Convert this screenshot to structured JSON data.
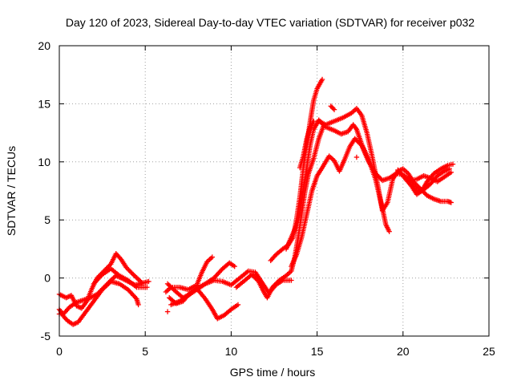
{
  "chart_data": {
    "type": "scatter",
    "title": "Day 120 of 2023, Sidereal Day-to-day VTEC variation (SDTVAR) for receiver p032",
    "xlabel": "GPS time / hours",
    "ylabel": "SDTVAR / TECUs",
    "xlim": [
      0,
      25
    ],
    "ylim": [
      -5,
      20
    ],
    "xticks": [
      0,
      5,
      10,
      15,
      20,
      25
    ],
    "yticks": [
      -5,
      0,
      5,
      10,
      15,
      20
    ],
    "grid": true,
    "marker": "+",
    "color": "#ff0000",
    "tracks": [
      {
        "name": "track-1",
        "points": [
          [
            0.0,
            -2.7
          ],
          [
            0.3,
            -3.4
          ],
          [
            0.5,
            -3.7
          ],
          [
            0.8,
            -4.0
          ],
          [
            1.1,
            -3.8
          ],
          [
            1.5,
            -3.0
          ],
          [
            2.0,
            -2.0
          ],
          [
            2.5,
            -1.0
          ],
          [
            3.0,
            -0.3
          ],
          [
            3.5,
            -0.5
          ],
          [
            4.0,
            -1.0
          ],
          [
            4.5,
            -1.8
          ],
          [
            4.6,
            -2.3
          ]
        ]
      },
      {
        "name": "track-2",
        "points": [
          [
            0.0,
            -3.1
          ],
          [
            0.3,
            -3.0
          ],
          [
            0.6,
            -2.5
          ],
          [
            1.0,
            -2.1
          ],
          [
            1.4,
            -1.9
          ],
          [
            1.8,
            -1.7
          ],
          [
            2.2,
            -1.4
          ],
          [
            2.6,
            -0.8
          ],
          [
            3.0,
            -0.2
          ],
          [
            3.3,
            0.2
          ],
          [
            3.6,
            0.0
          ],
          [
            4.0,
            -0.3
          ],
          [
            4.4,
            -0.6
          ],
          [
            5.2,
            -0.3
          ]
        ]
      },
      {
        "name": "track-3",
        "points": [
          [
            0.0,
            -1.4
          ],
          [
            0.4,
            -1.7
          ],
          [
            0.7,
            -1.5
          ],
          [
            1.0,
            -2.4
          ],
          [
            1.3,
            -2.6
          ],
          [
            1.6,
            -2.0
          ],
          [
            1.9,
            -0.9
          ],
          [
            2.2,
            0.0
          ],
          [
            2.6,
            0.6
          ],
          [
            3.0,
            1.2
          ],
          [
            3.3,
            2.1
          ],
          [
            3.6,
            1.6
          ],
          [
            3.9,
            0.9
          ],
          [
            4.3,
            0.3
          ],
          [
            4.8,
            -0.4
          ]
        ]
      },
      {
        "name": "track-4",
        "points": [
          [
            2.0,
            -0.5
          ],
          [
            2.5,
            0.3
          ],
          [
            3.0,
            0.8
          ],
          [
            3.5,
            0.2
          ],
          [
            4.0,
            -0.2
          ],
          [
            4.5,
            -0.8
          ],
          [
            5.0,
            -0.8
          ]
        ]
      },
      {
        "name": "track-5",
        "points": [
          [
            6.2,
            -1.2
          ],
          [
            6.5,
            -0.8
          ],
          [
            7.0,
            -0.8
          ],
          [
            7.5,
            -1.0
          ],
          [
            8.0,
            -0.6
          ],
          [
            8.3,
            0.5
          ],
          [
            8.6,
            1.4
          ],
          [
            8.9,
            1.8
          ]
        ]
      },
      {
        "name": "track-6",
        "points": [
          [
            6.3,
            -0.5
          ],
          [
            6.8,
            -1.2
          ],
          [
            7.2,
            -1.7
          ],
          [
            7.6,
            -1.4
          ],
          [
            8.0,
            -0.9
          ],
          [
            8.5,
            -0.5
          ],
          [
            9.0,
            0.0
          ],
          [
            9.5,
            0.8
          ],
          [
            9.9,
            1.3
          ],
          [
            10.2,
            1.0
          ]
        ]
      },
      {
        "name": "track-7",
        "points": [
          [
            6.4,
            -1.7
          ],
          [
            6.8,
            -2.2
          ],
          [
            7.2,
            -2.0
          ],
          [
            7.6,
            -1.3
          ],
          [
            8.0,
            -0.9
          ],
          [
            8.5,
            -1.8
          ],
          [
            8.9,
            -2.7
          ],
          [
            9.2,
            -3.5
          ],
          [
            9.6,
            -3.2
          ],
          [
            10.0,
            -2.7
          ],
          [
            10.4,
            -2.3
          ]
        ]
      },
      {
        "name": "track-8",
        "points": [
          [
            6.5,
            -2.3
          ],
          [
            7.0,
            -2.0
          ],
          [
            7.5,
            -1.5
          ],
          [
            8.0,
            -1.0
          ],
          [
            8.5,
            -0.5
          ],
          [
            9.0,
            -0.2
          ],
          [
            9.5,
            -0.3
          ],
          [
            10.0,
            -0.6
          ],
          [
            10.5,
            0.0
          ],
          [
            11.0,
            0.6
          ],
          [
            11.4,
            0.5
          ],
          [
            11.8,
            -0.4
          ],
          [
            12.2,
            -1.3
          ],
          [
            12.6,
            -0.6
          ],
          [
            13.0,
            -0.2
          ],
          [
            13.5,
            -0.2
          ]
        ]
      },
      {
        "name": "track-9",
        "points": [
          [
            10.3,
            -0.8
          ],
          [
            10.8,
            -0.2
          ],
          [
            11.2,
            0.3
          ],
          [
            11.6,
            -0.3
          ],
          [
            11.9,
            -1.2
          ],
          [
            12.1,
            -1.7
          ],
          [
            12.4,
            -0.8
          ],
          [
            12.8,
            -0.2
          ],
          [
            13.2,
            0.2
          ],
          [
            13.5,
            0.6
          ],
          [
            13.7,
            1.8
          ],
          [
            13.9,
            3.5
          ],
          [
            14.1,
            5.5
          ],
          [
            14.3,
            7.5
          ],
          [
            14.5,
            9.0
          ],
          [
            14.8,
            10.3
          ],
          [
            15.1,
            12.0
          ],
          [
            15.4,
            13.2
          ]
        ]
      },
      {
        "name": "track-10",
        "points": [
          [
            12.3,
            1.5
          ],
          [
            12.6,
            2.0
          ],
          [
            13.0,
            2.5
          ],
          [
            13.3,
            2.8
          ],
          [
            13.6,
            3.5
          ],
          [
            13.8,
            5.0
          ],
          [
            14.0,
            7.0
          ],
          [
            14.2,
            9.5
          ],
          [
            14.4,
            11.5
          ],
          [
            14.6,
            13.5
          ],
          [
            14.8,
            15.3
          ],
          [
            15.0,
            16.3
          ],
          [
            15.3,
            17.1
          ]
        ]
      },
      {
        "name": "track-11",
        "points": [
          [
            13.2,
            2.5
          ],
          [
            13.5,
            3.5
          ],
          [
            13.8,
            4.5
          ],
          [
            14.0,
            5.5
          ],
          [
            14.2,
            7.5
          ],
          [
            14.4,
            9.5
          ],
          [
            14.6,
            11.5
          ],
          [
            14.8,
            12.8
          ],
          [
            15.1,
            13.6
          ],
          [
            15.5,
            13.0
          ],
          [
            16.0,
            12.7
          ],
          [
            16.4,
            12.4
          ],
          [
            16.8,
            12.6
          ],
          [
            17.1,
            13.2
          ],
          [
            17.3,
            12.8
          ],
          [
            17.6,
            11.5
          ],
          [
            18.0,
            10.2
          ],
          [
            18.4,
            8.5
          ],
          [
            18.8,
            6.0
          ],
          [
            19.0,
            4.6
          ],
          [
            19.2,
            4.0
          ]
        ]
      },
      {
        "name": "track-12",
        "points": [
          [
            13.5,
            1.0
          ],
          [
            13.8,
            2.0
          ],
          [
            14.1,
            3.5
          ],
          [
            14.4,
            5.5
          ],
          [
            14.7,
            7.5
          ],
          [
            15.0,
            8.8
          ],
          [
            15.3,
            9.5
          ],
          [
            15.7,
            10.5
          ],
          [
            16.0,
            10.1
          ],
          [
            16.3,
            9.2
          ],
          [
            16.6,
            10.2
          ],
          [
            16.9,
            11.3
          ],
          [
            17.2,
            12.0
          ],
          [
            17.6,
            11.4
          ],
          [
            18.0,
            10.0
          ],
          [
            18.4,
            9.0
          ],
          [
            18.8,
            8.4
          ],
          [
            19.2,
            8.6
          ],
          [
            19.6,
            9.0
          ],
          [
            20.0,
            8.9
          ],
          [
            20.4,
            8.4
          ],
          [
            20.8,
            8.5
          ],
          [
            21.2,
            8.8
          ],
          [
            21.6,
            8.6
          ],
          [
            22.0,
            8.3
          ],
          [
            22.4,
            8.7
          ],
          [
            22.8,
            9.1
          ]
        ]
      },
      {
        "name": "track-13",
        "points": [
          [
            15.1,
            13.5
          ],
          [
            15.5,
            13.2
          ],
          [
            16.0,
            13.5
          ],
          [
            16.5,
            13.8
          ],
          [
            17.0,
            14.2
          ],
          [
            17.3,
            14.6
          ],
          [
            17.6,
            14.0
          ],
          [
            17.9,
            12.5
          ],
          [
            18.2,
            10.5
          ],
          [
            18.5,
            8.2
          ],
          [
            18.8,
            5.8
          ],
          [
            19.1,
            6.5
          ],
          [
            19.4,
            8.5
          ],
          [
            19.7,
            9.2
          ],
          [
            20.0,
            9.4
          ],
          [
            20.3,
            9.0
          ],
          [
            20.6,
            8.3
          ],
          [
            21.0,
            7.7
          ],
          [
            21.4,
            7.1
          ],
          [
            21.8,
            6.8
          ],
          [
            22.2,
            6.6
          ],
          [
            22.6,
            6.6
          ],
          [
            22.8,
            6.5
          ]
        ]
      },
      {
        "name": "track-14",
        "points": [
          [
            15.8,
            14.8
          ],
          [
            16.0,
            14.5
          ]
        ]
      },
      {
        "name": "track-15",
        "points": [
          [
            19.7,
            9.3
          ],
          [
            20.1,
            8.6
          ],
          [
            20.5,
            7.9
          ],
          [
            20.8,
            7.2
          ],
          [
            21.1,
            7.5
          ],
          [
            21.4,
            8.3
          ],
          [
            21.8,
            9.0
          ],
          [
            22.2,
            9.4
          ],
          [
            22.6,
            9.7
          ],
          [
            22.9,
            9.8
          ]
        ]
      },
      {
        "name": "track-16",
        "points": [
          [
            20.3,
            8.6
          ],
          [
            20.6,
            8.0
          ],
          [
            20.9,
            7.4
          ],
          [
            21.2,
            7.6
          ],
          [
            21.6,
            8.1
          ],
          [
            22.0,
            8.8
          ],
          [
            22.4,
            9.2
          ],
          [
            22.7,
            9.4
          ]
        ]
      },
      {
        "name": "track-17",
        "points": [
          [
            14.0,
            9.5
          ],
          [
            14.2,
            10.5
          ],
          [
            14.4,
            12.0
          ],
          [
            14.6,
            13.0
          ],
          [
            14.8,
            13.5
          ]
        ]
      }
    ],
    "isolated_points": [
      [
        6.3,
        -2.9
      ],
      [
        5.1,
        -0.8
      ],
      [
        17.3,
        10.4
      ]
    ]
  }
}
